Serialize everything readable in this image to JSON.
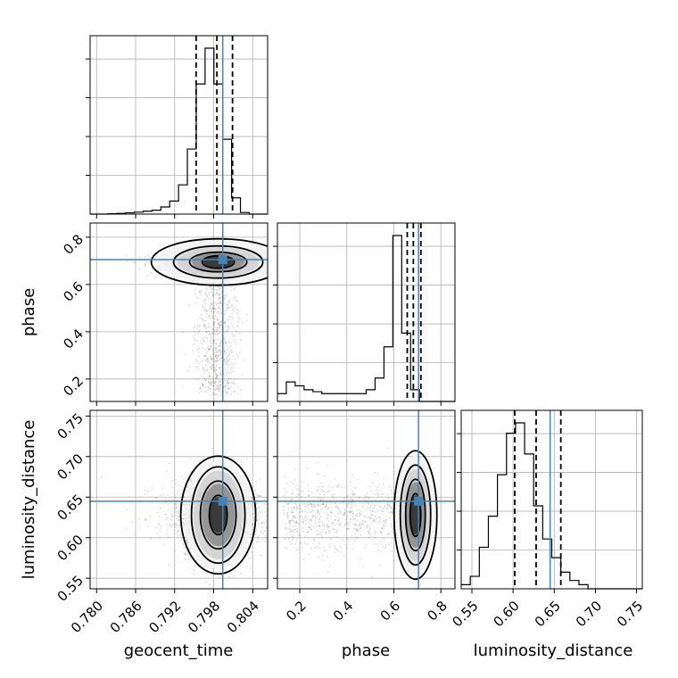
{
  "chart_data": {
    "type": "corner",
    "truths": {
      "geocent_time": 0.7994,
      "phase": 0.705,
      "luminosity_distance": 0.645
    },
    "params": [
      {
        "name": "geocent_time",
        "label": "geocent_time",
        "range": [
          0.779,
          0.8063
        ],
        "ticks": [
          0.78,
          0.786,
          0.792,
          0.798,
          0.804
        ],
        "tick_labels": [
          "0.780",
          "0.786",
          "0.792",
          "0.798",
          "0.804"
        ],
        "quantiles": [
          0.7953,
          0.7985,
          0.8009
        ]
      },
      {
        "name": "phase",
        "label": "phase",
        "range": [
          0.105,
          0.86
        ],
        "ticks": [
          0.2,
          0.4,
          0.6,
          0.8
        ],
        "tick_labels": [
          "0.2",
          "0.4",
          "0.6",
          "0.8"
        ],
        "quantiles": [
          0.657,
          0.683,
          0.715
        ]
      },
      {
        "name": "luminosity_distance",
        "label": "luminosity_distance",
        "range": [
          0.537,
          0.757
        ],
        "ticks": [
          0.55,
          0.6,
          0.65,
          0.7,
          0.75
        ],
        "tick_labels": [
          "0.55",
          "0.60",
          "0.65",
          "0.70",
          "0.75"
        ],
        "quantiles": [
          0.602,
          0.628,
          0.658
        ]
      }
    ],
    "histograms": {
      "geocent_time": {
        "edges_start": 0.779,
        "bin_width": 0.00136,
        "counts": [
          0,
          0,
          1,
          2,
          4,
          6,
          9,
          12,
          22,
          40,
          90,
          200,
          400,
          510,
          400,
          230,
          50,
          5,
          0,
          0
        ]
      },
      "phase": {
        "edges_start": 0.105,
        "bin_width": 0.03775,
        "counts": [
          4,
          10,
          8,
          6,
          5,
          4,
          4,
          4,
          4,
          4,
          6,
          12,
          28,
          85,
          35,
          6,
          0,
          0,
          0,
          0
        ]
      },
      "luminosity_distance": {
        "edges_start": 0.537,
        "bin_width": 0.011,
        "counts": [
          2,
          6,
          20,
          35,
          55,
          75,
          80,
          65,
          40,
          24,
          15,
          8,
          4,
          2,
          0,
          0,
          0,
          0,
          0,
          0
        ]
      }
    },
    "grid": true
  }
}
